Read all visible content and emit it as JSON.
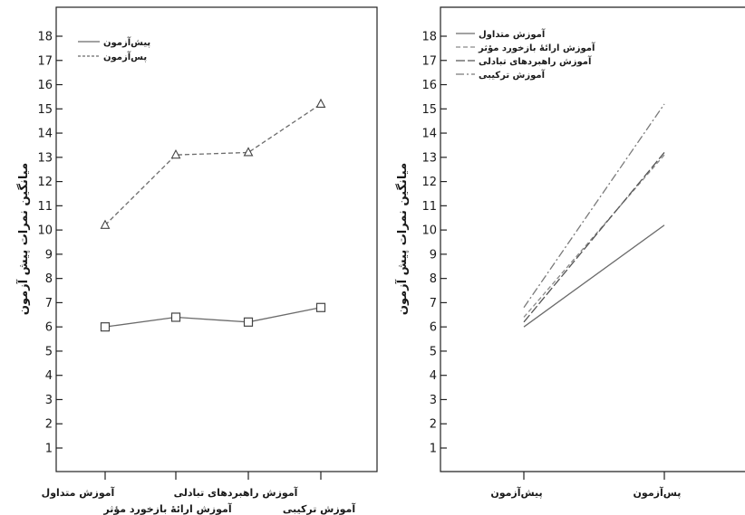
{
  "chart_data": [
    {
      "type": "line",
      "title": "",
      "xlabel": "",
      "ylabel": "میانگین نمرات پیش آزمون",
      "ylim": [
        0,
        18.5
      ],
      "yticks": [
        1,
        2,
        3,
        4,
        5,
        6,
        7,
        8,
        9,
        10,
        11,
        12,
        13,
        14,
        15,
        16,
        17,
        18
      ],
      "categories": [
        "آموزش متداول",
        "آموزش ارائۀ بازخورد مؤثر",
        "آموزش راهبردهای تبادلی",
        "آموزش ترکیبی"
      ],
      "series": [
        {
          "name": "پیش‌آزمون",
          "values": [
            6.0,
            6.4,
            6.2,
            6.8
          ],
          "marker": "square",
          "dash": "solid",
          "color": "#6b6b6b"
        },
        {
          "name": "پس‌آزمون",
          "values": [
            10.2,
            13.1,
            13.2,
            15.2
          ],
          "marker": "triangle",
          "dash": "dashed",
          "color": "#6b6b6b"
        }
      ],
      "grid": false,
      "legend": "top-left"
    },
    {
      "type": "line",
      "title": "",
      "xlabel": "",
      "ylabel": "میانگین نمرات پیش آزمون",
      "ylim": [
        0,
        18.5
      ],
      "yticks": [
        1,
        2,
        3,
        4,
        5,
        6,
        7,
        8,
        9,
        10,
        11,
        12,
        13,
        14,
        15,
        16,
        17,
        18
      ],
      "categories": [
        "پیش‌آزمون",
        "پس‌آزمون"
      ],
      "series": [
        {
          "name": "آموزش متداول",
          "values": [
            6.0,
            10.2
          ],
          "dash": "solid",
          "color": "#6b6b6b"
        },
        {
          "name": "آموزش ارائۀ بازخورد مؤثر",
          "values": [
            6.4,
            13.1
          ],
          "dash": "dashed",
          "color": "#8a8a8a"
        },
        {
          "name": "آموزش راهبردهای تبادلی",
          "values": [
            6.2,
            13.2
          ],
          "dash": "longdash",
          "color": "#555555"
        },
        {
          "name": "آموزش ترکیبی",
          "values": [
            6.8,
            15.2
          ],
          "dash": "dashdot",
          "color": "#7a7a7a"
        }
      ],
      "grid": false,
      "legend": "top-left"
    }
  ]
}
